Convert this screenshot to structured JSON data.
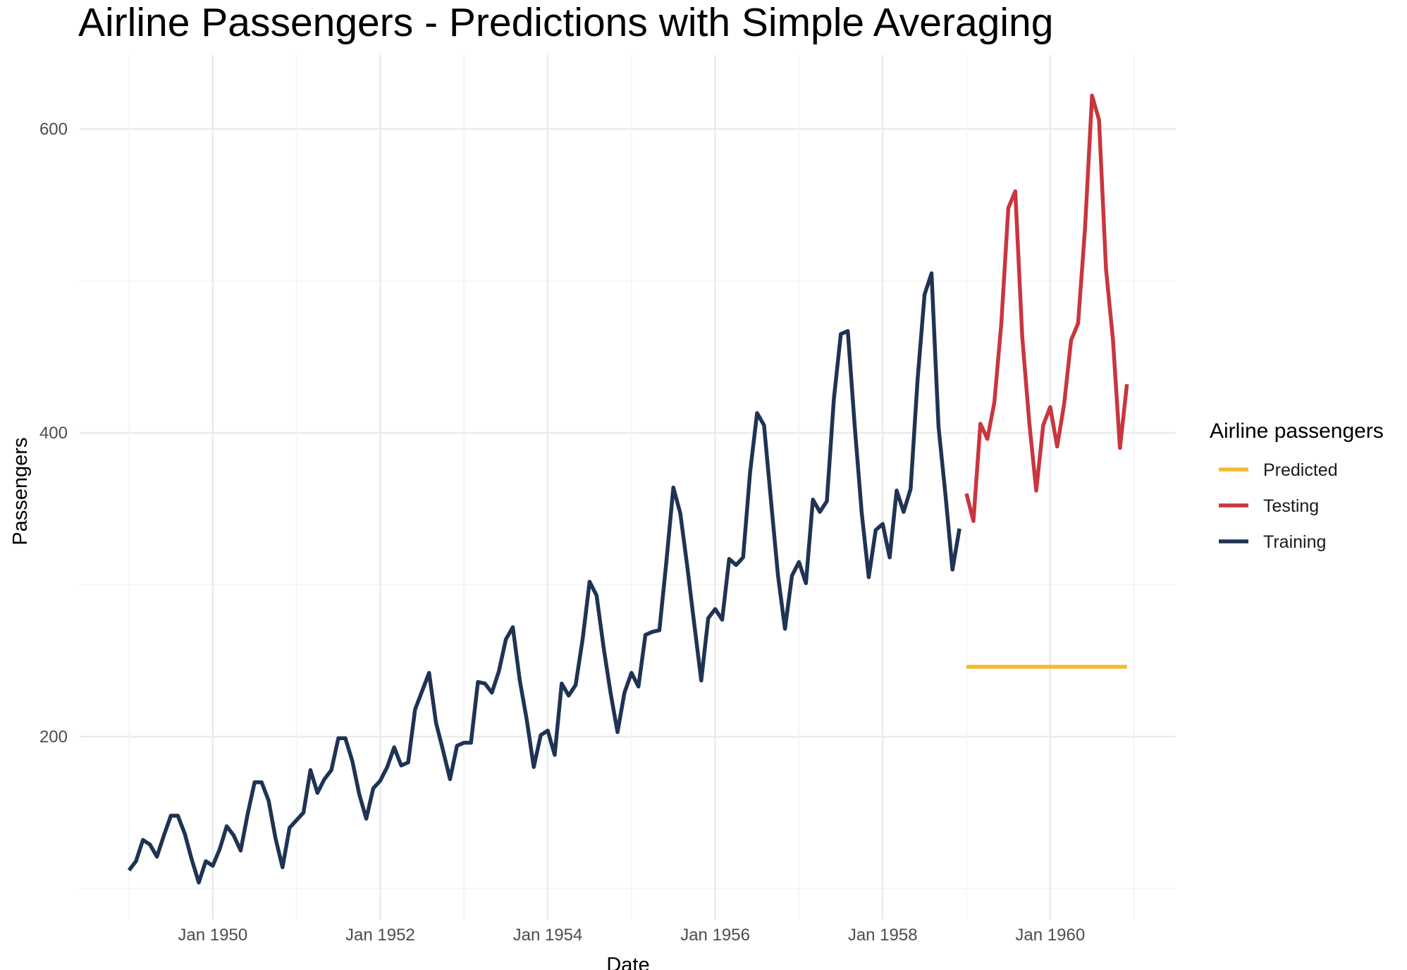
{
  "chart_data": {
    "type": "line",
    "title": "Airline Passengers - Predictions with Simple Averaging",
    "xlabel": "Date",
    "ylabel": "Passengers",
    "x_ticks": [
      "Jan 1950",
      "Jan 1952",
      "Jan 1954",
      "Jan 1956",
      "Jan 1958",
      "Jan 1960"
    ],
    "y_ticks": [
      200,
      400,
      600
    ],
    "ylim": [
      95,
      650
    ],
    "xlim": [
      "1948-11",
      "1961-05"
    ],
    "grid": true,
    "legend": {
      "title": "Airline passengers",
      "position": "right"
    },
    "colors": {
      "Predicted": "#f5b935",
      "Testing": "#c9363e",
      "Training": "#1f3354",
      "grid": "#ebebeb"
    },
    "series": [
      {
        "name": "Training",
        "start": "1949-01",
        "values": [
          112,
          118,
          132,
          129,
          121,
          135,
          148,
          148,
          136,
          119,
          104,
          118,
          115,
          126,
          141,
          135,
          125,
          149,
          170,
          170,
          158,
          133,
          114,
          140,
          145,
          150,
          178,
          163,
          172,
          178,
          199,
          199,
          184,
          162,
          146,
          166,
          171,
          180,
          193,
          181,
          183,
          218,
          230,
          242,
          209,
          191,
          172,
          194,
          196,
          196,
          236,
          235,
          229,
          243,
          264,
          272,
          237,
          211,
          180,
          201,
          204,
          188,
          235,
          227,
          234,
          264,
          302,
          293,
          259,
          229,
          203,
          229,
          242,
          233,
          267,
          269,
          270,
          315,
          364,
          347,
          312,
          274,
          237,
          278,
          284,
          277,
          317,
          313,
          318,
          374,
          413,
          405,
          355,
          306,
          271,
          306,
          315,
          301,
          356,
          348,
          355,
          422,
          465,
          467,
          404,
          347,
          305,
          336,
          340,
          318,
          362,
          348,
          363,
          435,
          491,
          505,
          404,
          359,
          310,
          337
        ]
      },
      {
        "name": "Testing",
        "start": "1959-01",
        "values": [
          360,
          342,
          406,
          396,
          420,
          472,
          548,
          559,
          463,
          407,
          362,
          405,
          417,
          391,
          419,
          461,
          472,
          535,
          622,
          606,
          508,
          461,
          390,
          432
        ]
      },
      {
        "name": "Predicted",
        "start": "1959-01",
        "values": [
          246,
          246,
          246,
          246,
          246,
          246,
          246,
          246,
          246,
          246,
          246,
          246,
          246,
          246,
          246,
          246,
          246,
          246,
          246,
          246,
          246,
          246,
          246,
          246
        ]
      }
    ],
    "legend_order": [
      "Predicted",
      "Testing",
      "Training"
    ]
  }
}
